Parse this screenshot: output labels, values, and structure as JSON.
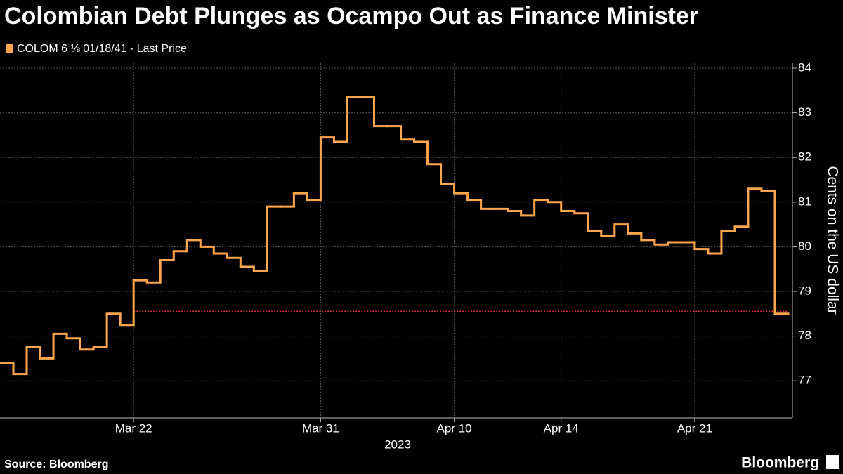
{
  "chart_data": {
    "type": "step",
    "title": "Colombian Debt Plunges as Ocampo Out as Finance Minister",
    "source": "Source: Bloomberg",
    "brand": "Bloomberg",
    "xlabel": "2023",
    "ylabel": "Cents on the US dollar",
    "categories": [
      null,
      null,
      null,
      null,
      null,
      null,
      null,
      null,
      null,
      null,
      "Mar 22",
      null,
      null,
      null,
      null,
      null,
      null,
      null,
      null,
      null,
      null,
      null,
      null,
      null,
      "Mar 31",
      null,
      null,
      null,
      null,
      null,
      null,
      null,
      null,
      null,
      "Apr 10",
      null,
      null,
      null,
      null,
      null,
      null,
      null,
      "Apr 14",
      null,
      null,
      null,
      null,
      null,
      null,
      null,
      null,
      null,
      "Apr 21",
      null,
      null,
      null,
      null,
      null,
      null
    ],
    "series": [
      {
        "name": "COLOM 6 ⅛ 01/18/41 - Last Price",
        "color": "#ffa64d",
        "values": [
          77.4,
          77.15,
          77.75,
          77.5,
          78.05,
          77.95,
          77.7,
          77.75,
          78.5,
          78.25,
          79.25,
          79.2,
          79.7,
          79.9,
          80.15,
          80.0,
          79.85,
          79.75,
          79.55,
          79.45,
          80.9,
          80.9,
          81.2,
          81.05,
          82.45,
          82.35,
          83.35,
          83.35,
          82.7,
          82.7,
          82.4,
          82.35,
          81.85,
          81.4,
          81.2,
          81.05,
          80.85,
          80.85,
          80.8,
          80.7,
          81.05,
          81.0,
          80.8,
          80.75,
          80.35,
          80.25,
          80.5,
          80.3,
          80.15,
          80.05,
          80.1,
          80.1,
          79.95,
          79.85,
          80.35,
          80.45,
          81.3,
          81.25,
          78.5
        ]
      }
    ],
    "reference_line": {
      "value": 78.55,
      "color": "#e0303a",
      "x_start": 10
    },
    "ylim": [
      76.17,
      84.11
    ],
    "yticks": [
      77,
      78,
      79,
      80,
      81,
      82,
      83,
      84
    ],
    "grid": true
  }
}
